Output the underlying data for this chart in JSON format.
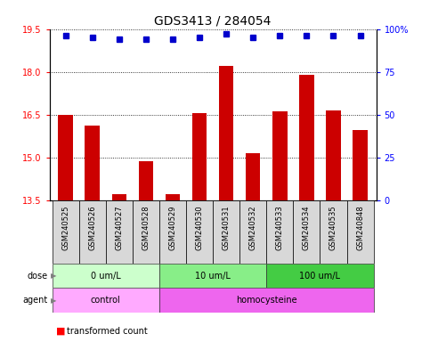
{
  "title": "GDS3413 / 284054",
  "samples": [
    "GSM240525",
    "GSM240526",
    "GSM240527",
    "GSM240528",
    "GSM240529",
    "GSM240530",
    "GSM240531",
    "GSM240532",
    "GSM240533",
    "GSM240534",
    "GSM240535",
    "GSM240848"
  ],
  "transformed_count": [
    16.5,
    16.1,
    13.7,
    14.85,
    13.7,
    16.55,
    18.2,
    15.15,
    16.6,
    17.9,
    16.65,
    15.95
  ],
  "percentile_rank": [
    96,
    95,
    94,
    94,
    94,
    95,
    97,
    95,
    96,
    96,
    96,
    96
  ],
  "ylim_left": [
    13.5,
    19.5
  ],
  "ylim_right": [
    0,
    100
  ],
  "yticks_left": [
    13.5,
    15.0,
    16.5,
    18.0,
    19.5
  ],
  "yticks_right": [
    0,
    25,
    50,
    75,
    100
  ],
  "dose_groups": [
    {
      "label": "0 um/L",
      "start": 0,
      "end": 4,
      "color": "#ccffcc"
    },
    {
      "label": "10 um/L",
      "start": 4,
      "end": 8,
      "color": "#88ee88"
    },
    {
      "label": "100 um/L",
      "start": 8,
      "end": 12,
      "color": "#44cc44"
    }
  ],
  "agent_groups": [
    {
      "label": "control",
      "start": 0,
      "end": 4,
      "color": "#ffaaff"
    },
    {
      "label": "homocysteine",
      "start": 4,
      "end": 12,
      "color": "#ee66ee"
    }
  ],
  "bar_color": "#cc0000",
  "dot_color": "#0000cc",
  "bar_width": 0.55,
  "background_color": "#ffffff",
  "tick_fontsize": 7,
  "sample_fontsize": 6,
  "title_fontsize": 10,
  "annot_fontsize": 7,
  "legend_fontsize": 7
}
